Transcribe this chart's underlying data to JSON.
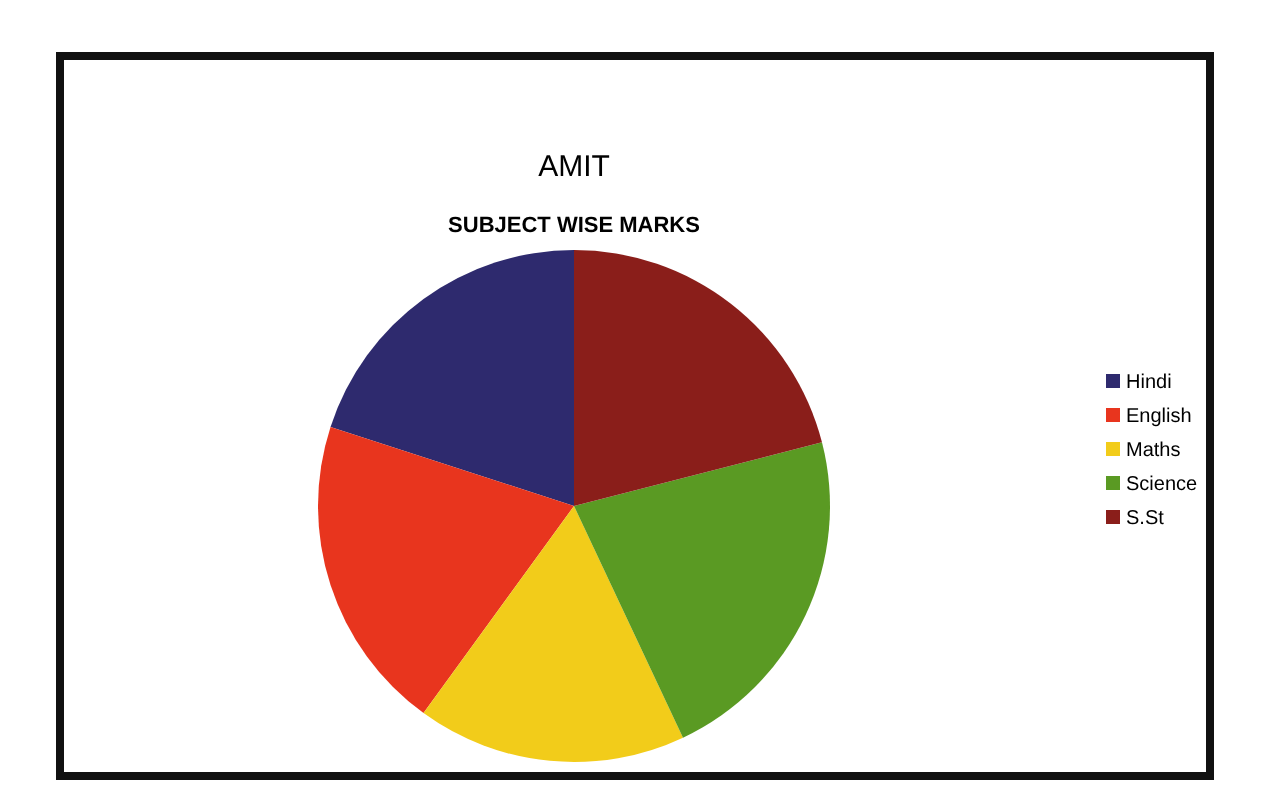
{
  "chart_data": {
    "type": "pie",
    "title": "AMIT",
    "subtitle": "SUBJECT WISE MARKS",
    "categories": [
      "Hindi",
      "English",
      "Maths",
      "Science",
      "S.St"
    ],
    "values": [
      20,
      20,
      17,
      22,
      21
    ],
    "colors": [
      "#2e2a6e",
      "#e8351e",
      "#f2cc1a",
      "#5a9a23",
      "#8a1e1a"
    ],
    "legend": "right"
  }
}
